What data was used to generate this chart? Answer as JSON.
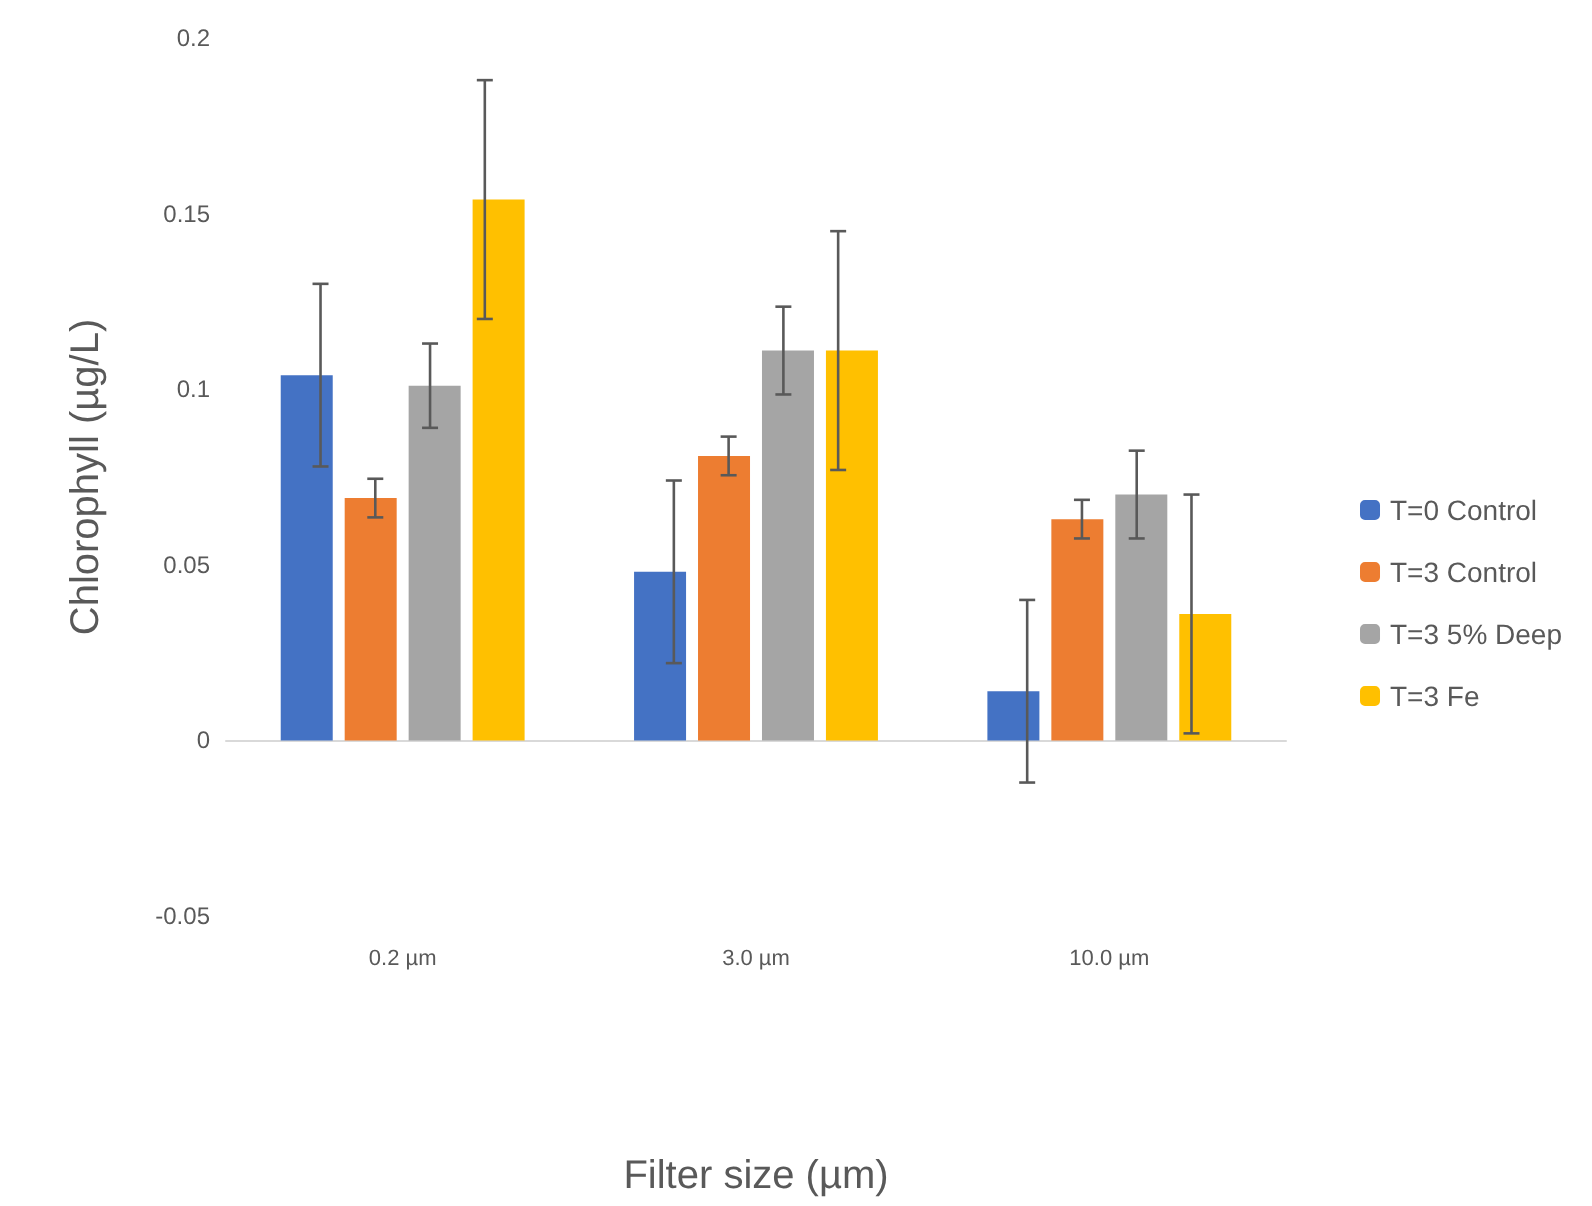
{
  "chart_data": {
    "type": "bar",
    "xlabel": "Filter size (µm)",
    "ylabel": "Chlorophyll (µg/L)",
    "categories": [
      "0.2 µm",
      "3.0 µm",
      "10.0 µm"
    ],
    "series": [
      {
        "name": "T=0 Control",
        "color": "#4472c4",
        "values": [
          0.104,
          0.048,
          0.014
        ],
        "errors": [
          0.026,
          0.026,
          0.026
        ]
      },
      {
        "name": "T=3 Control",
        "color": "#ed7d31",
        "values": [
          0.069,
          0.081,
          0.063
        ],
        "errors": [
          0.0055,
          0.0055,
          0.0055
        ]
      },
      {
        "name": "T=3 5% Deep",
        "color": "#a5a5a5",
        "values": [
          0.101,
          0.111,
          0.07
        ],
        "errors": [
          0.012,
          0.0125,
          0.0125
        ]
      },
      {
        "name": "T=3 Fe",
        "color": "#ffc000",
        "values": [
          0.154,
          0.111,
          0.036
        ],
        "errors": [
          0.034,
          0.034,
          0.034
        ]
      }
    ],
    "ylim": [
      -0.05,
      0.2
    ],
    "yticks": [
      -0.05,
      0,
      0.05,
      0.1,
      0.15,
      0.2
    ],
    "legend": "right"
  }
}
